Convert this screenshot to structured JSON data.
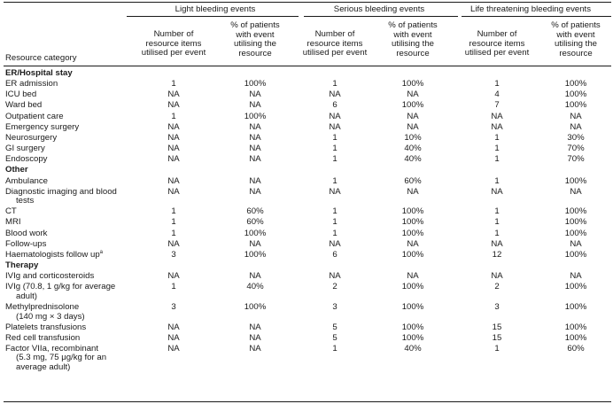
{
  "header": {
    "category_label": "Resource category",
    "groups": [
      "Light bleeding events",
      "Serious bleeding events",
      "Life threatening bleeding events"
    ],
    "items_col": [
      "Number of",
      "resource items",
      "utilised per event"
    ],
    "pct_col": [
      "% of patients",
      "with event",
      "utilising the",
      "resource"
    ]
  },
  "rows": [
    {
      "type": "section",
      "label": "ER/Hospital stay"
    },
    {
      "label": "ER admission",
      "v": [
        "1",
        "100%",
        "1",
        "100%",
        "1",
        "100%"
      ]
    },
    {
      "label": "ICU bed",
      "v": [
        "NA",
        "NA",
        "NA",
        "NA",
        "4",
        "100%"
      ]
    },
    {
      "label": "Ward bed",
      "v": [
        "NA",
        "NA",
        "6",
        "100%",
        "7",
        "100%"
      ]
    },
    {
      "label": "Outpatient care",
      "v": [
        "1",
        "100%",
        "NA",
        "NA",
        "NA",
        "NA"
      ]
    },
    {
      "label": "Emergency surgery",
      "v": [
        "NA",
        "NA",
        "NA",
        "NA",
        "NA",
        "NA"
      ]
    },
    {
      "label": "Neurosurgery",
      "v": [
        "NA",
        "NA",
        "1",
        "10%",
        "1",
        "30%"
      ]
    },
    {
      "label": "GI surgery",
      "v": [
        "NA",
        "NA",
        "1",
        "40%",
        "1",
        "70%"
      ]
    },
    {
      "label": "Endoscopy",
      "v": [
        "NA",
        "NA",
        "1",
        "40%",
        "1",
        "70%"
      ]
    },
    {
      "type": "section",
      "label": "Other"
    },
    {
      "label": "Ambulance",
      "v": [
        "NA",
        "NA",
        "1",
        "60%",
        "1",
        "100%"
      ]
    },
    {
      "label": "Diagnostic imaging and blood",
      "label2": "tests",
      "v": [
        "NA",
        "NA",
        "NA",
        "NA",
        "NA",
        "NA"
      ]
    },
    {
      "label": "CT",
      "v": [
        "1",
        "60%",
        "1",
        "100%",
        "1",
        "100%"
      ]
    },
    {
      "label": "MRI",
      "v": [
        "1",
        "60%",
        "1",
        "100%",
        "1",
        "100%"
      ]
    },
    {
      "label": "Blood work",
      "v": [
        "1",
        "100%",
        "1",
        "100%",
        "1",
        "100%"
      ]
    },
    {
      "label": "Follow-ups",
      "v": [
        "NA",
        "NA",
        "NA",
        "NA",
        "NA",
        "NA"
      ]
    },
    {
      "label": "Haematologists follow up",
      "sup": "a",
      "v": [
        "3",
        "100%",
        "6",
        "100%",
        "12",
        "100%"
      ]
    },
    {
      "type": "section",
      "label": "Therapy"
    },
    {
      "label": "IVIg and corticosteroids",
      "v": [
        "NA",
        "NA",
        "NA",
        "NA",
        "NA",
        "NA"
      ]
    },
    {
      "label": "IVIg (70.8, 1  g/kg for average",
      "label2": "adult)",
      "v": [
        "1",
        "40%",
        "2",
        "100%",
        "2",
        "100%"
      ]
    },
    {
      "label": "Methylprednisolone",
      "label2": "(140 mg × 3 days)",
      "v": [
        "3",
        "100%",
        "3",
        "100%",
        "3",
        "100%"
      ]
    },
    {
      "label": "Platelets transfusions",
      "v": [
        "NA",
        "NA",
        "5",
        "100%",
        "15",
        "100%"
      ]
    },
    {
      "label": "Red cell transfusion",
      "v": [
        "NA",
        "NA",
        "5",
        "100%",
        "15",
        "100%"
      ]
    },
    {
      "label": "Factor VIIa, recombinant",
      "label2": "(5.3 mg, 75 μg/kg for an",
      "label3": "average adult)",
      "v": [
        "NA",
        "NA",
        "1",
        "40%",
        "1",
        "60%"
      ]
    }
  ]
}
